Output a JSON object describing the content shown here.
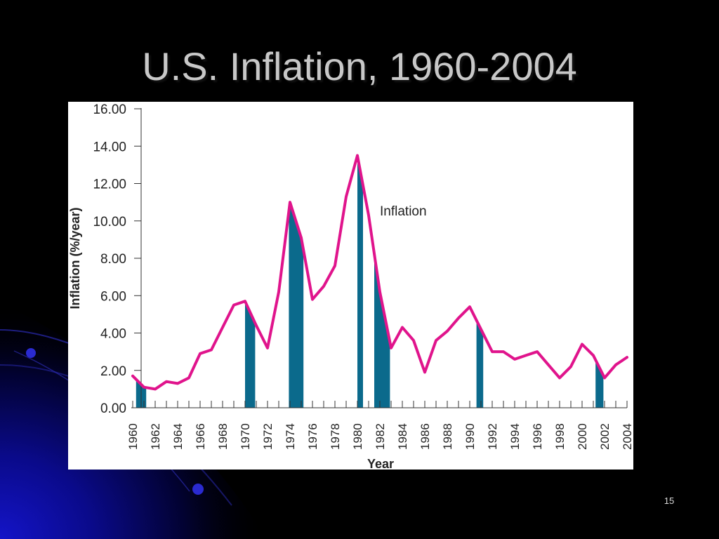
{
  "slide": {
    "title": "U.S. Inflation, 1960-2004",
    "page_number": "15"
  },
  "colors": {
    "background": "#000000",
    "line": "#e0148c",
    "recession": "#0b6a8c"
  },
  "chart_data": {
    "type": "line",
    "title": "",
    "xlabel": "Year",
    "ylabel": "Inflation (%/year)",
    "xlim": [
      1960,
      2004
    ],
    "ylim": [
      0,
      16
    ],
    "grid": false,
    "y_ticks": [
      "0.00",
      "2.00",
      "4.00",
      "6.00",
      "8.00",
      "10.00",
      "12.00",
      "14.00",
      "16.00"
    ],
    "x_ticks": [
      "1960",
      "1962",
      "1964",
      "1966",
      "1968",
      "1970",
      "1972",
      "1974",
      "1976",
      "1978",
      "1980",
      "1982",
      "1984",
      "1986",
      "1988",
      "1990",
      "1992",
      "1994",
      "1996",
      "1998",
      "2000",
      "2002",
      "2004"
    ],
    "annotation": "Inflation",
    "series": [
      {
        "name": "Inflation",
        "x": [
          1960,
          1961,
          1962,
          1963,
          1964,
          1965,
          1966,
          1967,
          1968,
          1969,
          1970,
          1971,
          1972,
          1973,
          1974,
          1975,
          1976,
          1977,
          1978,
          1979,
          1980,
          1981,
          1982,
          1983,
          1984,
          1985,
          1986,
          1987,
          1988,
          1989,
          1990,
          1991,
          1992,
          1993,
          1994,
          1995,
          1996,
          1997,
          1998,
          1999,
          2000,
          2001,
          2002,
          2003,
          2004
        ],
        "y": [
          1.7,
          1.1,
          1.0,
          1.4,
          1.3,
          1.6,
          2.9,
          3.1,
          4.3,
          5.5,
          5.7,
          4.4,
          3.2,
          6.2,
          11.0,
          9.1,
          5.8,
          6.5,
          7.6,
          11.3,
          13.5,
          10.3,
          6.2,
          3.2,
          4.3,
          3.6,
          1.9,
          3.6,
          4.1,
          4.8,
          5.4,
          4.2,
          3.0,
          3.0,
          2.6,
          2.8,
          3.0,
          2.3,
          1.6,
          2.2,
          3.4,
          2.8,
          1.6,
          2.3,
          2.7
        ]
      }
    ],
    "shaded_periods": [
      {
        "start": 1960.3,
        "end": 1961.2
      },
      {
        "start": 1970.0,
        "end": 1970.9
      },
      {
        "start": 1973.9,
        "end": 1975.2
      },
      {
        "start": 1980.0,
        "end": 1980.5
      },
      {
        "start": 1981.5,
        "end": 1982.9
      },
      {
        "start": 1990.6,
        "end": 1991.2
      },
      {
        "start": 2001.2,
        "end": 2001.9
      }
    ]
  }
}
